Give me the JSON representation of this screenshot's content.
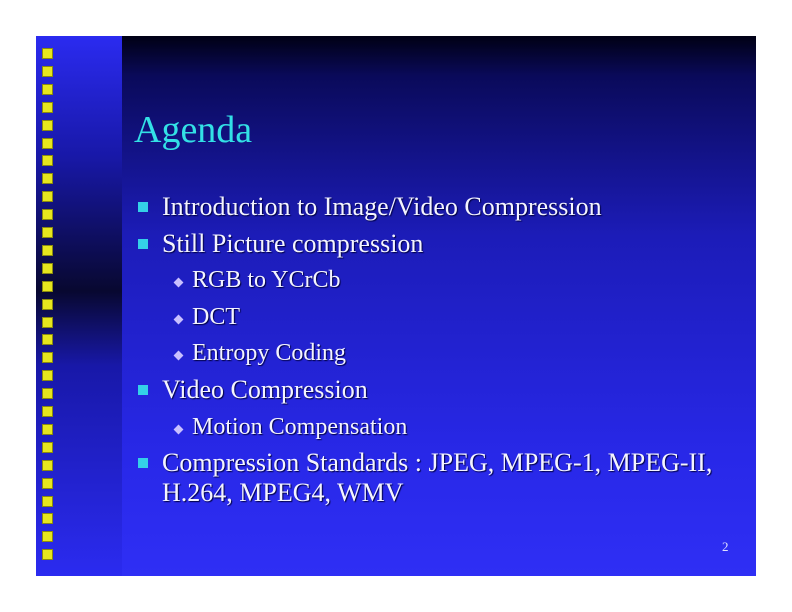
{
  "slide": {
    "title": "Agenda",
    "page_number": "2",
    "colors": {
      "background_top": "#000014",
      "background_bottom": "#2f2ff5",
      "title": "#33e0e6",
      "text": "#f4f4ff",
      "square_bullet": "#34d0e8",
      "diamond_bullet": "#c9c0ff",
      "strip_squares": "#e6e61e"
    },
    "items": [
      {
        "level": 1,
        "bullet": "square-bullet-icon",
        "text": "Introduction to Image/Video Compression"
      },
      {
        "level": 1,
        "bullet": "square-bullet-icon",
        "text": "Still Picture compression"
      },
      {
        "level": 2,
        "bullet": "diamond-bullet-icon",
        "text": "RGB to YCrCb"
      },
      {
        "level": 2,
        "bullet": "diamond-bullet-icon",
        "text": "DCT"
      },
      {
        "level": 2,
        "bullet": "diamond-bullet-icon",
        "text": "Entropy Coding"
      },
      {
        "level": 1,
        "bullet": "square-bullet-icon",
        "text": "Video Compression"
      },
      {
        "level": 2,
        "bullet": "diamond-bullet-icon",
        "text": "Motion Compensation"
      },
      {
        "level": 1,
        "bullet": "square-bullet-icon",
        "text": "Compression Standards : JPEG, MPEG-1, MPEG-II, H.264, MPEG4, WMV"
      }
    ]
  }
}
